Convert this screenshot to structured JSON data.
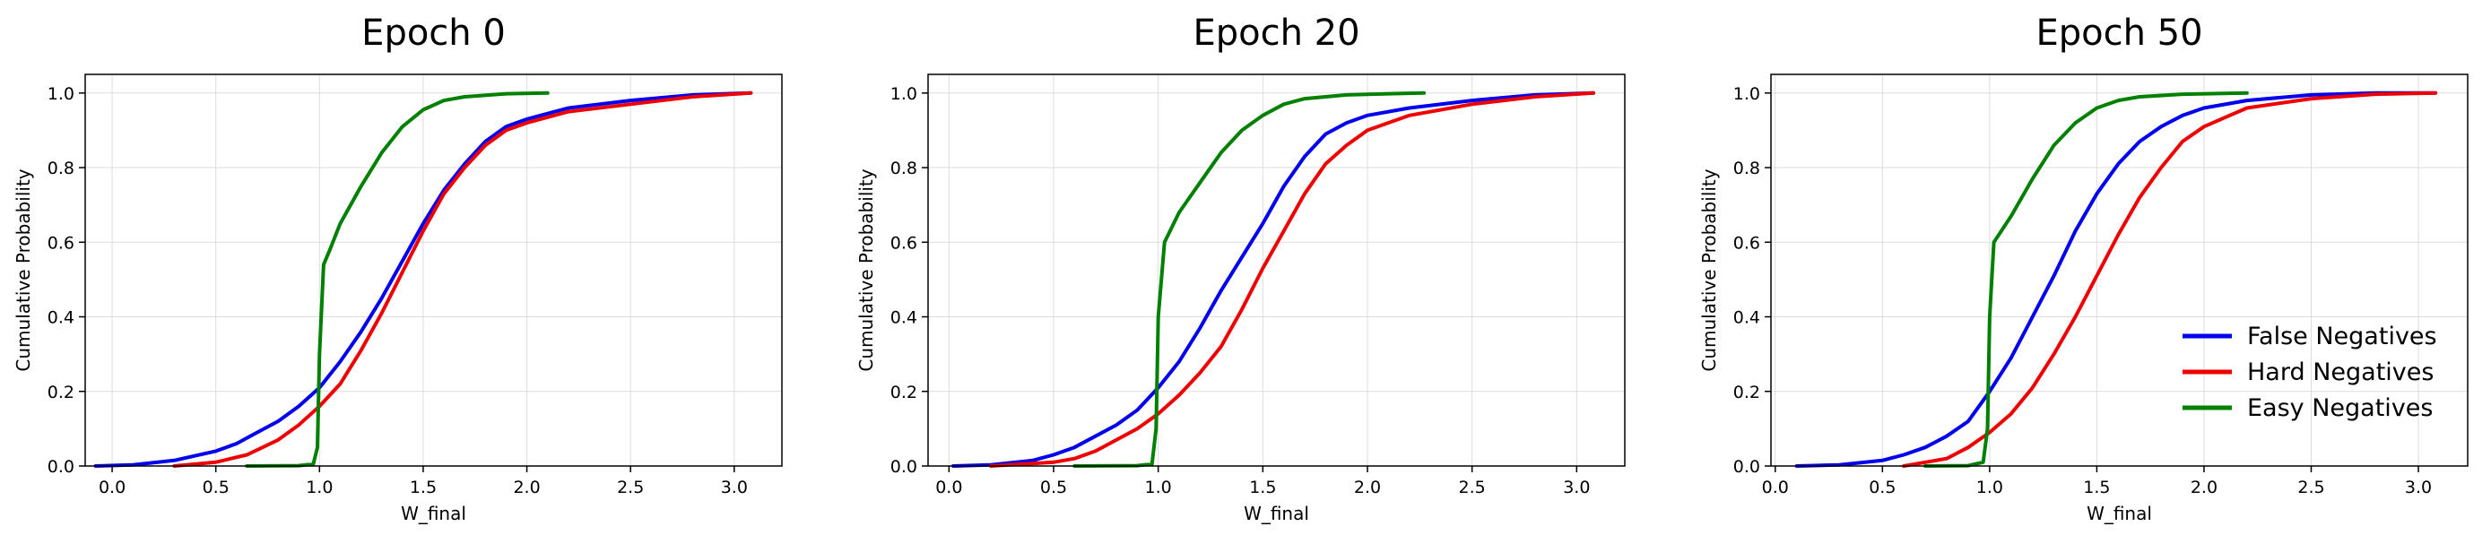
{
  "chart_data": [
    {
      "type": "line",
      "title": "Epoch 0",
      "xlabel": "W_final",
      "ylabel": "Cumulative Probability",
      "xlim": [
        -0.13,
        3.23
      ],
      "ylim": [
        0,
        1.05
      ],
      "xticks": [
        "0.0",
        "0.5",
        "1.0",
        "1.5",
        "2.0",
        "2.5",
        "3.0"
      ],
      "yticks": [
        "0.0",
        "0.2",
        "0.4",
        "0.6",
        "0.8",
        "1.0"
      ],
      "grid": true,
      "legend": null,
      "series": [
        {
          "name": "False Negatives",
          "color": "#0000ee",
          "points": [
            [
              -0.08,
              0
            ],
            [
              0.1,
              0.003
            ],
            [
              0.3,
              0.015
            ],
            [
              0.5,
              0.04
            ],
            [
              0.6,
              0.06
            ],
            [
              0.7,
              0.09
            ],
            [
              0.8,
              0.12
            ],
            [
              0.9,
              0.16
            ],
            [
              1.0,
              0.21
            ],
            [
              1.1,
              0.28
            ],
            [
              1.2,
              0.36
            ],
            [
              1.3,
              0.45
            ],
            [
              1.4,
              0.55
            ],
            [
              1.5,
              0.65
            ],
            [
              1.6,
              0.74
            ],
            [
              1.7,
              0.81
            ],
            [
              1.8,
              0.87
            ],
            [
              1.9,
              0.91
            ],
            [
              2.0,
              0.93
            ],
            [
              2.2,
              0.96
            ],
            [
              2.5,
              0.98
            ],
            [
              2.8,
              0.995
            ],
            [
              3.08,
              1.0
            ]
          ]
        },
        {
          "name": "Hard Negatives",
          "color": "#ee0000",
          "points": [
            [
              0.3,
              0
            ],
            [
              0.5,
              0.01
            ],
            [
              0.65,
              0.03
            ],
            [
              0.8,
              0.07
            ],
            [
              0.9,
              0.11
            ],
            [
              1.0,
              0.16
            ],
            [
              1.1,
              0.22
            ],
            [
              1.2,
              0.31
            ],
            [
              1.3,
              0.41
            ],
            [
              1.4,
              0.52
            ],
            [
              1.5,
              0.63
            ],
            [
              1.6,
              0.73
            ],
            [
              1.7,
              0.8
            ],
            [
              1.8,
              0.86
            ],
            [
              1.9,
              0.9
            ],
            [
              2.0,
              0.92
            ],
            [
              2.2,
              0.95
            ],
            [
              2.5,
              0.97
            ],
            [
              2.8,
              0.99
            ],
            [
              3.08,
              1.0
            ]
          ]
        },
        {
          "name": "Easy Negatives",
          "color": "#008000",
          "points": [
            [
              0.65,
              0
            ],
            [
              0.9,
              0.001
            ],
            [
              0.97,
              0.005
            ],
            [
              0.99,
              0.05
            ],
            [
              1.0,
              0.3
            ],
            [
              1.02,
              0.54
            ],
            [
              1.05,
              0.58
            ],
            [
              1.1,
              0.65
            ],
            [
              1.2,
              0.75
            ],
            [
              1.3,
              0.84
            ],
            [
              1.4,
              0.91
            ],
            [
              1.5,
              0.955
            ],
            [
              1.6,
              0.98
            ],
            [
              1.7,
              0.99
            ],
            [
              1.9,
              0.998
            ],
            [
              2.1,
              1.0
            ]
          ]
        }
      ]
    },
    {
      "type": "line",
      "title": "Epoch 20",
      "xlabel": "W_final",
      "ylabel": "Cumulative Probability",
      "xlim": [
        -0.1,
        3.23
      ],
      "ylim": [
        0,
        1.05
      ],
      "xticks": [
        "0.0",
        "0.5",
        "1.0",
        "1.5",
        "2.0",
        "2.5",
        "3.0"
      ],
      "yticks": [
        "0.0",
        "0.2",
        "0.4",
        "0.6",
        "0.8",
        "1.0"
      ],
      "grid": true,
      "legend": null,
      "series": [
        {
          "name": "False Negatives",
          "color": "#0000ee",
          "points": [
            [
              0.02,
              0
            ],
            [
              0.2,
              0.003
            ],
            [
              0.4,
              0.015
            ],
            [
              0.5,
              0.03
            ],
            [
              0.6,
              0.05
            ],
            [
              0.7,
              0.08
            ],
            [
              0.8,
              0.11
            ],
            [
              0.9,
              0.15
            ],
            [
              1.0,
              0.21
            ],
            [
              1.1,
              0.28
            ],
            [
              1.2,
              0.37
            ],
            [
              1.3,
              0.47
            ],
            [
              1.4,
              0.56
            ],
            [
              1.5,
              0.65
            ],
            [
              1.6,
              0.75
            ],
            [
              1.7,
              0.83
            ],
            [
              1.8,
              0.89
            ],
            [
              1.9,
              0.92
            ],
            [
              2.0,
              0.94
            ],
            [
              2.2,
              0.96
            ],
            [
              2.5,
              0.98
            ],
            [
              2.8,
              0.995
            ],
            [
              3.08,
              1.0
            ]
          ]
        },
        {
          "name": "Hard Negatives",
          "color": "#ee0000",
          "points": [
            [
              0.2,
              0
            ],
            [
              0.5,
              0.01
            ],
            [
              0.6,
              0.02
            ],
            [
              0.7,
              0.04
            ],
            [
              0.8,
              0.07
            ],
            [
              0.9,
              0.1
            ],
            [
              1.0,
              0.14
            ],
            [
              1.1,
              0.19
            ],
            [
              1.2,
              0.25
            ],
            [
              1.3,
              0.32
            ],
            [
              1.4,
              0.42
            ],
            [
              1.5,
              0.53
            ],
            [
              1.6,
              0.63
            ],
            [
              1.7,
              0.73
            ],
            [
              1.8,
              0.81
            ],
            [
              1.9,
              0.86
            ],
            [
              2.0,
              0.9
            ],
            [
              2.2,
              0.94
            ],
            [
              2.5,
              0.97
            ],
            [
              2.8,
              0.99
            ],
            [
              3.08,
              1.0
            ]
          ]
        },
        {
          "name": "Easy Negatives",
          "color": "#008000",
          "points": [
            [
              0.6,
              0
            ],
            [
              0.9,
              0.001
            ],
            [
              0.97,
              0.005
            ],
            [
              0.99,
              0.1
            ],
            [
              1.0,
              0.4
            ],
            [
              1.03,
              0.6
            ],
            [
              1.1,
              0.68
            ],
            [
              1.2,
              0.76
            ],
            [
              1.3,
              0.84
            ],
            [
              1.4,
              0.9
            ],
            [
              1.5,
              0.94
            ],
            [
              1.6,
              0.97
            ],
            [
              1.7,
              0.985
            ],
            [
              1.9,
              0.995
            ],
            [
              2.1,
              0.998
            ],
            [
              2.27,
              1.0
            ]
          ]
        }
      ]
    },
    {
      "type": "line",
      "title": "Epoch 50",
      "xlabel": "W_final",
      "ylabel": "Cumulative Probability",
      "xlim": [
        -0.02,
        3.23
      ],
      "ylim": [
        0,
        1.05
      ],
      "xticks": [
        "0.0",
        "0.5",
        "1.0",
        "1.5",
        "2.0",
        "2.5",
        "3.0"
      ],
      "yticks": [
        "0.0",
        "0.2",
        "0.4",
        "0.6",
        "0.8",
        "1.0"
      ],
      "grid": true,
      "legend": "lower right",
      "series": [
        {
          "name": "False Negatives",
          "color": "#0000ee",
          "points": [
            [
              0.1,
              0
            ],
            [
              0.3,
              0.003
            ],
            [
              0.5,
              0.015
            ],
            [
              0.6,
              0.03
            ],
            [
              0.7,
              0.05
            ],
            [
              0.8,
              0.08
            ],
            [
              0.9,
              0.12
            ],
            [
              1.0,
              0.2
            ],
            [
              1.1,
              0.29
            ],
            [
              1.2,
              0.4
            ],
            [
              1.3,
              0.51
            ],
            [
              1.4,
              0.63
            ],
            [
              1.5,
              0.73
            ],
            [
              1.6,
              0.81
            ],
            [
              1.7,
              0.87
            ],
            [
              1.8,
              0.91
            ],
            [
              1.9,
              0.94
            ],
            [
              2.0,
              0.96
            ],
            [
              2.2,
              0.98
            ],
            [
              2.5,
              0.995
            ],
            [
              2.8,
              1.0
            ],
            [
              3.08,
              1.0
            ]
          ]
        },
        {
          "name": "Hard Negatives",
          "color": "#ee0000",
          "points": [
            [
              0.6,
              0
            ],
            [
              0.8,
              0.02
            ],
            [
              0.9,
              0.05
            ],
            [
              1.0,
              0.09
            ],
            [
              1.1,
              0.14
            ],
            [
              1.2,
              0.21
            ],
            [
              1.3,
              0.3
            ],
            [
              1.4,
              0.4
            ],
            [
              1.5,
              0.51
            ],
            [
              1.6,
              0.62
            ],
            [
              1.7,
              0.72
            ],
            [
              1.8,
              0.8
            ],
            [
              1.9,
              0.87
            ],
            [
              2.0,
              0.91
            ],
            [
              2.2,
              0.96
            ],
            [
              2.5,
              0.985
            ],
            [
              2.8,
              0.997
            ],
            [
              3.08,
              1.0
            ]
          ]
        },
        {
          "name": "Easy Negatives",
          "color": "#008000",
          "points": [
            [
              0.7,
              0
            ],
            [
              0.9,
              0.001
            ],
            [
              0.97,
              0.01
            ],
            [
              0.99,
              0.1
            ],
            [
              1.0,
              0.4
            ],
            [
              1.02,
              0.6
            ],
            [
              1.1,
              0.67
            ],
            [
              1.2,
              0.77
            ],
            [
              1.3,
              0.86
            ],
            [
              1.4,
              0.92
            ],
            [
              1.5,
              0.96
            ],
            [
              1.6,
              0.98
            ],
            [
              1.7,
              0.99
            ],
            [
              1.9,
              0.997
            ],
            [
              2.2,
              1.0
            ]
          ]
        }
      ]
    }
  ]
}
